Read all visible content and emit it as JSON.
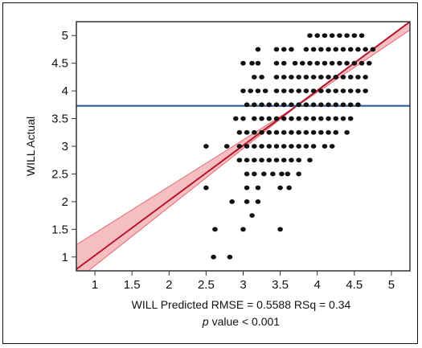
{
  "chart_data": {
    "type": "scatter",
    "xlabel": "WILL Predicted RMSE = 0.5588 RSq = 0.34",
    "caption_p": "p",
    "caption_rest": " value < 0.001",
    "ylabel": "WILL Actual",
    "xlim": [
      0.75,
      5.25
    ],
    "ylim": [
      0.75,
      5.25
    ],
    "x_ticks": [
      1,
      1.5,
      2,
      2.5,
      3,
      3.5,
      4,
      4.5,
      5
    ],
    "x_tick_labels": [
      "1",
      "1.5",
      "2",
      "2.5",
      "3",
      "3.5",
      "4",
      "4.5",
      "5"
    ],
    "y_ticks": [
      1,
      1.5,
      2,
      2.5,
      3,
      3.5,
      4,
      4.5,
      5
    ],
    "y_tick_labels": [
      "1",
      "1.5",
      "2",
      "2.5",
      "3",
      "3.5",
      "4",
      "4.5",
      "5"
    ],
    "mean_line": {
      "y": 3.73,
      "color": "#2e5a9e"
    },
    "fit_line": {
      "points": [
        [
          0.75,
          0.78
        ],
        [
          5.25,
          5.25
        ]
      ],
      "color": "#b5162b"
    },
    "confidence_band": {
      "upper": [
        [
          0.75,
          1.22
        ],
        [
          3.73,
          3.73
        ],
        [
          5.25,
          5.25
        ]
      ],
      "lower": [
        [
          0.75,
          0.58
        ],
        [
          3.73,
          3.73
        ],
        [
          5.25,
          5.1
        ]
      ],
      "color": "#f2aaae"
    },
    "points": [
      [
        2.6,
        1.0
      ],
      [
        2.82,
        1.0
      ],
      [
        2.62,
        1.5
      ],
      [
        3.0,
        1.5
      ],
      [
        3.5,
        1.5
      ],
      [
        3.12,
        1.75
      ],
      [
        2.85,
        2.0
      ],
      [
        3.05,
        2.0
      ],
      [
        3.2,
        2.0
      ],
      [
        2.5,
        2.25
      ],
      [
        3.05,
        2.25
      ],
      [
        3.2,
        2.25
      ],
      [
        3.5,
        2.25
      ],
      [
        3.62,
        2.25
      ],
      [
        3.05,
        2.5
      ],
      [
        3.15,
        2.5
      ],
      [
        3.28,
        2.5
      ],
      [
        3.4,
        2.5
      ],
      [
        3.52,
        2.5
      ],
      [
        3.6,
        2.5
      ],
      [
        3.75,
        2.5
      ],
      [
        2.95,
        2.75
      ],
      [
        3.05,
        2.75
      ],
      [
        3.15,
        2.75
      ],
      [
        3.25,
        2.75
      ],
      [
        3.35,
        2.75
      ],
      [
        3.45,
        2.75
      ],
      [
        3.55,
        2.75
      ],
      [
        3.65,
        2.75
      ],
      [
        3.75,
        2.75
      ],
      [
        3.9,
        2.75
      ],
      [
        2.5,
        3.0
      ],
      [
        2.78,
        3.0
      ],
      [
        2.95,
        3.0
      ],
      [
        3.05,
        3.0
      ],
      [
        3.15,
        3.0
      ],
      [
        3.25,
        3.0
      ],
      [
        3.35,
        3.0
      ],
      [
        3.45,
        3.0
      ],
      [
        3.55,
        3.0
      ],
      [
        3.65,
        3.0
      ],
      [
        3.75,
        3.0
      ],
      [
        3.85,
        3.0
      ],
      [
        3.95,
        3.0
      ],
      [
        4.1,
        3.0
      ],
      [
        4.2,
        3.0
      ],
      [
        2.95,
        3.25
      ],
      [
        3.05,
        3.25
      ],
      [
        3.15,
        3.25
      ],
      [
        3.25,
        3.25
      ],
      [
        3.35,
        3.25
      ],
      [
        3.45,
        3.25
      ],
      [
        3.55,
        3.25
      ],
      [
        3.65,
        3.25
      ],
      [
        3.75,
        3.25
      ],
      [
        3.85,
        3.25
      ],
      [
        3.95,
        3.25
      ],
      [
        4.05,
        3.25
      ],
      [
        4.15,
        3.25
      ],
      [
        4.25,
        3.25
      ],
      [
        4.4,
        3.25
      ],
      [
        2.9,
        3.5
      ],
      [
        3.0,
        3.5
      ],
      [
        3.15,
        3.5
      ],
      [
        3.25,
        3.5
      ],
      [
        3.35,
        3.5
      ],
      [
        3.45,
        3.5
      ],
      [
        3.55,
        3.5
      ],
      [
        3.65,
        3.5
      ],
      [
        3.75,
        3.5
      ],
      [
        3.85,
        3.5
      ],
      [
        3.95,
        3.5
      ],
      [
        4.05,
        3.5
      ],
      [
        4.15,
        3.5
      ],
      [
        4.25,
        3.5
      ],
      [
        4.35,
        3.5
      ],
      [
        4.45,
        3.5
      ],
      [
        3.05,
        3.75
      ],
      [
        3.15,
        3.75
      ],
      [
        3.25,
        3.75
      ],
      [
        3.35,
        3.75
      ],
      [
        3.45,
        3.75
      ],
      [
        3.55,
        3.75
      ],
      [
        3.65,
        3.75
      ],
      [
        3.75,
        3.75
      ],
      [
        3.85,
        3.75
      ],
      [
        3.95,
        3.75
      ],
      [
        4.05,
        3.75
      ],
      [
        4.15,
        3.75
      ],
      [
        4.25,
        3.75
      ],
      [
        4.35,
        3.75
      ],
      [
        4.45,
        3.75
      ],
      [
        4.55,
        3.75
      ],
      [
        3.0,
        4.0
      ],
      [
        3.1,
        4.0
      ],
      [
        3.2,
        4.0
      ],
      [
        3.3,
        4.0
      ],
      [
        3.45,
        4.0
      ],
      [
        3.55,
        4.0
      ],
      [
        3.65,
        4.0
      ],
      [
        3.75,
        4.0
      ],
      [
        3.85,
        4.0
      ],
      [
        3.95,
        4.0
      ],
      [
        4.05,
        4.0
      ],
      [
        4.15,
        4.0
      ],
      [
        4.25,
        4.0
      ],
      [
        4.35,
        4.0
      ],
      [
        4.45,
        4.0
      ],
      [
        4.55,
        4.0
      ],
      [
        4.65,
        4.0
      ],
      [
        3.15,
        4.25
      ],
      [
        3.25,
        4.25
      ],
      [
        3.45,
        4.25
      ],
      [
        3.55,
        4.25
      ],
      [
        3.65,
        4.25
      ],
      [
        3.75,
        4.25
      ],
      [
        3.85,
        4.25
      ],
      [
        3.95,
        4.25
      ],
      [
        4.05,
        4.25
      ],
      [
        4.15,
        4.25
      ],
      [
        4.25,
        4.25
      ],
      [
        4.35,
        4.25
      ],
      [
        4.45,
        4.25
      ],
      [
        4.55,
        4.25
      ],
      [
        4.65,
        4.25
      ],
      [
        3.0,
        4.5
      ],
      [
        3.12,
        4.5
      ],
      [
        3.2,
        4.5
      ],
      [
        3.45,
        4.5
      ],
      [
        3.55,
        4.5
      ],
      [
        3.7,
        4.5
      ],
      [
        3.8,
        4.5
      ],
      [
        3.9,
        4.5
      ],
      [
        4.0,
        4.5
      ],
      [
        4.1,
        4.5
      ],
      [
        4.2,
        4.5
      ],
      [
        4.3,
        4.5
      ],
      [
        4.4,
        4.5
      ],
      [
        4.5,
        4.5
      ],
      [
        4.6,
        4.5
      ],
      [
        4.7,
        4.5
      ],
      [
        3.2,
        4.75
      ],
      [
        3.45,
        4.75
      ],
      [
        3.55,
        4.75
      ],
      [
        3.65,
        4.75
      ],
      [
        3.85,
        4.75
      ],
      [
        3.95,
        4.75
      ],
      [
        4.05,
        4.75
      ],
      [
        4.15,
        4.75
      ],
      [
        4.25,
        4.75
      ],
      [
        4.35,
        4.75
      ],
      [
        4.45,
        4.75
      ],
      [
        4.55,
        4.75
      ],
      [
        4.65,
        4.75
      ],
      [
        4.75,
        4.75
      ],
      [
        3.9,
        5.0
      ],
      [
        4.0,
        5.0
      ],
      [
        4.1,
        5.0
      ],
      [
        4.2,
        5.0
      ],
      [
        4.3,
        5.0
      ],
      [
        4.4,
        5.0
      ],
      [
        4.5,
        5.0
      ],
      [
        4.6,
        5.0
      ]
    ],
    "point_color": "#111111",
    "grid": false
  }
}
